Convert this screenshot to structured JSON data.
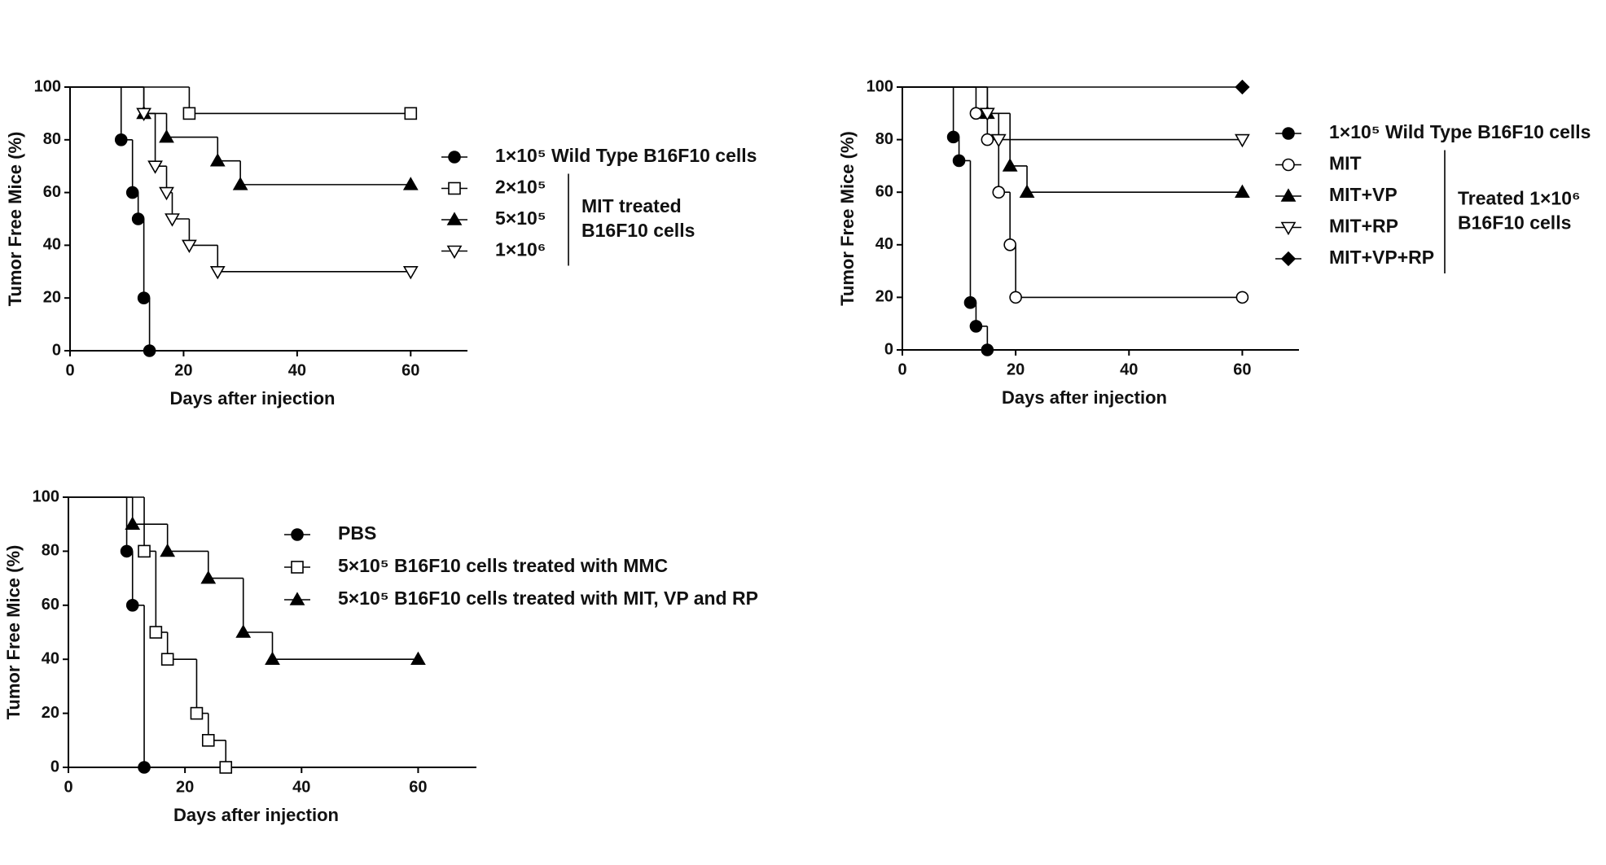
{
  "chart_data": [
    {
      "type": "line",
      "step": true,
      "x_label": "Days after injection",
      "y_label": "Tumor Free Mice (%)",
      "xlim": [
        0,
        70
      ],
      "ylim": [
        0,
        100
      ],
      "xticks": [
        0,
        20,
        40,
        60
      ],
      "yticks": [
        0,
        20,
        40,
        60,
        80,
        100
      ],
      "group_label": [
        "MIT treated",
        "B16F10 cells"
      ],
      "series": [
        {
          "name": "1×10⁵ Wild Type B16F10 cells",
          "marker": "circle-filled",
          "color": "#000000",
          "grouped": false,
          "x": [
            0,
            9,
            11,
            12,
            13,
            14
          ],
          "values": [
            100,
            80,
            60,
            50,
            20,
            0
          ]
        },
        {
          "name": "2×10⁵",
          "marker": "square-open",
          "color": "#000000",
          "grouped": true,
          "x": [
            0,
            21,
            60
          ],
          "values": [
            100,
            90,
            90
          ]
        },
        {
          "name": "5×10⁵",
          "marker": "triangle-filled",
          "color": "#000000",
          "grouped": true,
          "x": [
            0,
            13,
            17,
            26,
            30,
            60
          ],
          "values": [
            100,
            90,
            81,
            72,
            63,
            63
          ]
        },
        {
          "name": "1×10⁶",
          "marker": "triangle-down-open",
          "color": "#000000",
          "grouped": true,
          "x": [
            0,
            13,
            15,
            17,
            18,
            21,
            26,
            60
          ],
          "values": [
            100,
            90,
            70,
            60,
            50,
            40,
            30,
            30
          ]
        }
      ]
    },
    {
      "type": "line",
      "step": true,
      "x_label": "Days after injection",
      "y_label": "Tumor Free Mice (%)",
      "xlim": [
        0,
        70
      ],
      "ylim": [
        0,
        100
      ],
      "xticks": [
        0,
        20,
        40,
        60
      ],
      "yticks": [
        0,
        20,
        40,
        60,
        80,
        100
      ],
      "group_label": [
        "Treated 1×10⁶",
        "B16F10 cells"
      ],
      "series": [
        {
          "name": "1×10⁵ Wild Type B16F10 cells",
          "marker": "circle-filled",
          "color": "#000000",
          "grouped": false,
          "x": [
            0,
            9,
            10,
            12,
            13,
            15
          ],
          "values": [
            100,
            81,
            72,
            18,
            9,
            0
          ]
        },
        {
          "name": "MIT",
          "marker": "circle-open",
          "color": "#000000",
          "grouped": true,
          "x": [
            0,
            13,
            15,
            17,
            19,
            20,
            60
          ],
          "values": [
            100,
            90,
            80,
            60,
            40,
            20,
            20
          ]
        },
        {
          "name": "MIT+VP",
          "marker": "triangle-filled",
          "color": "#000000",
          "grouped": true,
          "x": [
            0,
            15,
            19,
            22,
            60
          ],
          "values": [
            100,
            90,
            70,
            60,
            60
          ]
        },
        {
          "name": "MIT+RP",
          "marker": "triangle-down-open",
          "color": "#000000",
          "grouped": true,
          "x": [
            0,
            15,
            17,
            60
          ],
          "values": [
            100,
            90,
            80,
            80
          ]
        },
        {
          "name": "MIT+VP+RP",
          "marker": "diamond-filled",
          "color": "#000000",
          "grouped": true,
          "x": [
            0,
            60
          ],
          "values": [
            100,
            100
          ]
        }
      ]
    },
    {
      "type": "line",
      "step": true,
      "x_label": "Days after injection",
      "y_label": "Tumor Free Mice (%)",
      "xlim": [
        0,
        70
      ],
      "ylim": [
        0,
        100
      ],
      "xticks": [
        0,
        20,
        40,
        60
      ],
      "yticks": [
        0,
        20,
        40,
        60,
        80,
        100
      ],
      "series": [
        {
          "name": "PBS",
          "marker": "circle-filled",
          "color": "#000000",
          "x": [
            0,
            10,
            11,
            13
          ],
          "values": [
            100,
            80,
            60,
            0
          ]
        },
        {
          "name": "5×10⁵ B16F10 cells treated with MMC",
          "marker": "square-open",
          "color": "#000000",
          "x": [
            0,
            13,
            15,
            17,
            22,
            24,
            27
          ],
          "values": [
            100,
            80,
            50,
            40,
            20,
            10,
            0
          ]
        },
        {
          "name": "5×10⁵ B16F10 cells treated with MIT, VP and RP",
          "marker": "triangle-filled",
          "color": "#000000",
          "x": [
            0,
            11,
            17,
            24,
            30,
            35,
            60
          ],
          "values": [
            100,
            90,
            80,
            70,
            50,
            40,
            40
          ]
        }
      ]
    }
  ]
}
